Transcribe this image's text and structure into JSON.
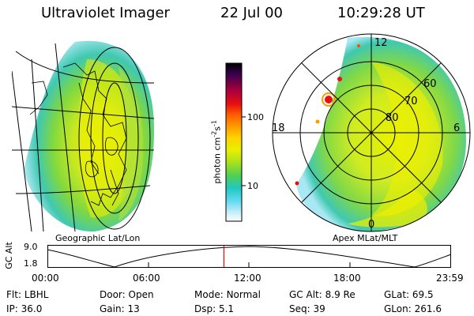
{
  "header": {
    "instrument": "Ultraviolet Imager",
    "date": "22 Jul 00",
    "time": "10:29:28 UT"
  },
  "left_panel": {
    "label": "Geographic Lat/Lon"
  },
  "right_panel": {
    "label": "Apex MLat/MLT",
    "mlt_labels": {
      "top": "12",
      "left": "18",
      "right": "6",
      "bottom": "0"
    },
    "lat_labels": [
      "60",
      "70",
      "80"
    ]
  },
  "colorbar": {
    "unit_label": "photon cm",
    "unit_exp1": "-2",
    "unit_mid": "s",
    "unit_exp2": "-1",
    "ticks": [
      "100",
      "10"
    ],
    "colors": [
      "#000000",
      "#3a0050",
      "#b0003a",
      "#e81010",
      "#ff5000",
      "#ff9a00",
      "#ffd000",
      "#e8f000",
      "#a8e020",
      "#50d050",
      "#20c8c0",
      "#60d8f0",
      "#c0ecf8",
      "#ffffff"
    ]
  },
  "altitude_plot": {
    "ylabel": "GC Alt",
    "yticks": [
      "9.0",
      "1.8"
    ],
    "xticks": [
      "00:00",
      "06:00",
      "12:00",
      "18:00",
      "23:59"
    ],
    "current_time_marker_hours": 10.49,
    "marker_color": "#ff0000"
  },
  "footer": {
    "row1": [
      {
        "label": "Flt:",
        "value": "LBHL"
      },
      {
        "label": "Door:",
        "value": "Open"
      },
      {
        "label": "Mode:",
        "value": "Normal"
      },
      {
        "label": "GC Alt:",
        "value": "8.9 Re"
      },
      {
        "label": "GLat:",
        "value": "69.5"
      }
    ],
    "row2": [
      {
        "label": "IP:",
        "value": "36.0"
      },
      {
        "label": "Gain:",
        "value": "13"
      },
      {
        "label": "Dsp:",
        "value": "5.1"
      },
      {
        "label": "Seq:",
        "value": "39"
      },
      {
        "label": "GLon:",
        "value": "261.6"
      }
    ]
  }
}
